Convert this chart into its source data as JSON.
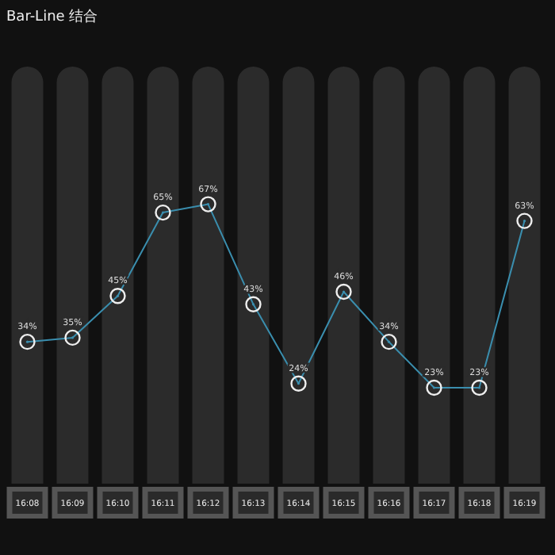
{
  "chart_data": {
    "type": "bar",
    "title": "Bar-Line 结合",
    "categories": [
      "16:08",
      "16:09",
      "16:10",
      "16:11",
      "16:12",
      "16:13",
      "16:14",
      "16:15",
      "16:16",
      "16:17",
      "16:18",
      "16:19"
    ],
    "ylim": [
      0,
      100
    ],
    "marker": "circle",
    "series": [
      {
        "color": "#2b2b2b",
        "values": [
          100,
          100,
          100,
          100,
          100,
          100,
          100,
          100,
          100,
          100,
          100,
          100
        ]
      },
      {
        "type": "line",
        "color": "#3a8eae",
        "values": [
          34,
          35,
          45,
          65,
          67,
          43,
          24,
          46,
          34,
          23,
          23,
          63
        ],
        "value_labels": [
          "34%",
          "35%",
          "45%",
          "65%",
          "67%",
          "43%",
          "24%",
          "46%",
          "34%",
          "23%",
          "23%",
          "63%"
        ]
      }
    ]
  }
}
